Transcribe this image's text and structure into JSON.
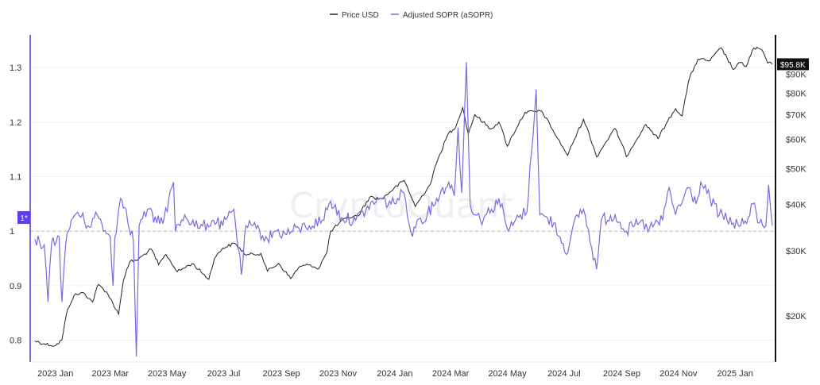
{
  "chart_data": {
    "type": "line",
    "watermark": "CryptoQuant",
    "legend": [
      {
        "name": "Price USD",
        "color": "#222222"
      },
      {
        "name": "Adjusted SOPR (aSOPR)",
        "color": "#7b68dd"
      }
    ],
    "x_ticks": [
      "2023 Jan",
      "2023 Mar",
      "2023 May",
      "2023 Jul",
      "2023 Sep",
      "2023 Nov",
      "2024 Jan",
      "2024 Mar",
      "2024 May",
      "2024 Jul",
      "2024 Sep",
      "2024 Nov",
      "2025 Jan"
    ],
    "x_tick_dates": [
      "2023-01-01",
      "2023-03-01",
      "2023-05-01",
      "2023-07-01",
      "2023-09-01",
      "2023-11-01",
      "2024-01-01",
      "2024-03-01",
      "2024-05-01",
      "2024-07-01",
      "2024-09-01",
      "2024-11-01",
      "2025-01-01"
    ],
    "x_range": [
      "2022-12-10",
      "2025-02-10"
    ],
    "left_axis": {
      "ticks": [
        0.8,
        0.9,
        1,
        1.1,
        1.2,
        1.3
      ],
      "tick_labels": [
        "0.8",
        "0.9",
        "1",
        "1.1",
        "1.2",
        "1.3"
      ],
      "range": [
        0.76,
        1.36
      ],
      "baseline": 1
    },
    "right_axis": {
      "scale": "log",
      "ticks": [
        20000,
        30000,
        40000,
        50000,
        60000,
        70000,
        80000,
        90000
      ],
      "tick_labels": [
        "$20K",
        "$30K",
        "$40K",
        "$50K",
        "$60K",
        "$70K",
        "$80K",
        "$90K"
      ],
      "range": [
        15000,
        115000
      ]
    },
    "left_marker": {
      "label": "1*",
      "value": 1.025
    },
    "right_marker": {
      "label": "$95.8K",
      "value": 95800
    },
    "series": [
      {
        "name": "Price USD",
        "axis": "right",
        "color": "#222222",
        "points": [
          [
            "2022-12-10",
            17100
          ],
          [
            "2022-12-20",
            16800
          ],
          [
            "2023-01-01",
            16600
          ],
          [
            "2023-01-08",
            17200
          ],
          [
            "2023-01-14",
            20800
          ],
          [
            "2023-01-21",
            22700
          ],
          [
            "2023-01-31",
            23100
          ],
          [
            "2023-02-10",
            21800
          ],
          [
            "2023-02-16",
            24300
          ],
          [
            "2023-02-25",
            23200
          ],
          [
            "2023-03-10",
            20200
          ],
          [
            "2023-03-15",
            24900
          ],
          [
            "2023-03-22",
            28000
          ],
          [
            "2023-03-31",
            28400
          ],
          [
            "2023-04-14",
            30300
          ],
          [
            "2023-04-22",
            27500
          ],
          [
            "2023-04-30",
            29300
          ],
          [
            "2023-05-12",
            26300
          ],
          [
            "2023-05-28",
            27700
          ],
          [
            "2023-06-15",
            25100
          ],
          [
            "2023-06-21",
            28600
          ],
          [
            "2023-06-30",
            30500
          ],
          [
            "2023-07-13",
            31400
          ],
          [
            "2023-07-25",
            29200
          ],
          [
            "2023-08-10",
            29500
          ],
          [
            "2023-08-17",
            26400
          ],
          [
            "2023-08-29",
            27700
          ],
          [
            "2023-09-11",
            25200
          ],
          [
            "2023-09-20",
            27100
          ],
          [
            "2023-10-02",
            27500
          ],
          [
            "2023-10-11",
            26800
          ],
          [
            "2023-10-20",
            29700
          ],
          [
            "2023-10-24",
            33900
          ],
          [
            "2023-11-09",
            36700
          ],
          [
            "2023-11-23",
            37300
          ],
          [
            "2023-12-05",
            41900
          ],
          [
            "2023-12-18",
            41400
          ],
          [
            "2024-01-11",
            46500
          ],
          [
            "2024-01-23",
            39500
          ],
          [
            "2024-02-08",
            45300
          ],
          [
            "2024-02-15",
            51800
          ],
          [
            "2024-02-28",
            62500
          ],
          [
            "2024-03-05",
            63800
          ],
          [
            "2024-03-14",
            73100
          ],
          [
            "2024-03-20",
            62000
          ],
          [
            "2024-03-27",
            70000
          ],
          [
            "2024-04-13",
            64000
          ],
          [
            "2024-04-22",
            66800
          ],
          [
            "2024-05-01",
            57500
          ],
          [
            "2024-05-20",
            71000
          ],
          [
            "2024-06-07",
            71500
          ],
          [
            "2024-06-24",
            60300
          ],
          [
            "2024-07-05",
            54300
          ],
          [
            "2024-07-22",
            68000
          ],
          [
            "2024-08-05",
            53800
          ],
          [
            "2024-08-25",
            64200
          ],
          [
            "2024-09-06",
            53900
          ],
          [
            "2024-09-27",
            65800
          ],
          [
            "2024-10-10",
            60300
          ],
          [
            "2024-10-29",
            72700
          ],
          [
            "2024-11-05",
            69500
          ],
          [
            "2024-11-13",
            88000
          ],
          [
            "2024-11-22",
            98900
          ],
          [
            "2024-12-05",
            98000
          ],
          [
            "2024-12-17",
            106100
          ],
          [
            "2024-12-30",
            92700
          ],
          [
            "2025-01-07",
            96900
          ],
          [
            "2025-01-13",
            94500
          ],
          [
            "2025-01-21",
            106000
          ],
          [
            "2025-01-30",
            104700
          ],
          [
            "2025-02-05",
            96500
          ],
          [
            "2025-02-10",
            95800
          ]
        ]
      },
      {
        "name": "Adjusted SOPR (aSOPR)",
        "axis": "left",
        "color": "#7b68dd",
        "points": [
          [
            "2022-12-10",
            0.985
          ],
          [
            "2022-12-20",
            0.975
          ],
          [
            "2022-12-24",
            0.87
          ],
          [
            "2022-12-28",
            0.98
          ],
          [
            "2023-01-05",
            0.99
          ],
          [
            "2023-01-08",
            0.87
          ],
          [
            "2023-01-12",
            0.975
          ],
          [
            "2023-01-18",
            1.02
          ],
          [
            "2023-01-25",
            1.035
          ],
          [
            "2023-02-05",
            1.01
          ],
          [
            "2023-02-15",
            1.03
          ],
          [
            "2023-02-25",
            0.995
          ],
          [
            "2023-03-01",
            0.99
          ],
          [
            "2023-03-04",
            0.9
          ],
          [
            "2023-03-06",
            0.99
          ],
          [
            "2023-03-12",
            1.06
          ],
          [
            "2023-03-18",
            1.04
          ],
          [
            "2023-03-26",
            0.98
          ],
          [
            "2023-03-29",
            0.77
          ],
          [
            "2023-04-01",
            1.01
          ],
          [
            "2023-04-10",
            1.04
          ],
          [
            "2023-04-20",
            1.015
          ],
          [
            "2023-04-28",
            1.025
          ],
          [
            "2023-05-08",
            1.09
          ],
          [
            "2023-05-10",
            1.0
          ],
          [
            "2023-05-20",
            1.03
          ],
          [
            "2023-06-05",
            1.005
          ],
          [
            "2023-06-20",
            1.02
          ],
          [
            "2023-06-30",
            1.01
          ],
          [
            "2023-07-12",
            1.04
          ],
          [
            "2023-07-20",
            0.92
          ],
          [
            "2023-07-25",
            1.01
          ],
          [
            "2023-08-05",
            1.005
          ],
          [
            "2023-08-17",
            0.985
          ],
          [
            "2023-08-25",
            1.0
          ],
          [
            "2023-09-05",
            0.995
          ],
          [
            "2023-09-20",
            1.005
          ],
          [
            "2023-10-01",
            1.01
          ],
          [
            "2023-10-15",
            1.02
          ],
          [
            "2023-10-24",
            1.055
          ],
          [
            "2023-11-05",
            1.025
          ],
          [
            "2023-11-20",
            1.02
          ],
          [
            "2023-12-01",
            1.04
          ],
          [
            "2023-12-15",
            1.06
          ],
          [
            "2023-12-28",
            1.05
          ],
          [
            "2024-01-11",
            1.07
          ],
          [
            "2024-01-20",
            0.99
          ],
          [
            "2024-01-25",
            1.02
          ],
          [
            "2024-02-05",
            1.03
          ],
          [
            "2024-02-15",
            1.06
          ],
          [
            "2024-02-28",
            1.09
          ],
          [
            "2024-03-05",
            1.065
          ],
          [
            "2024-03-09",
            1.19
          ],
          [
            "2024-03-13",
            1.07
          ],
          [
            "2024-03-18",
            1.31
          ],
          [
            "2024-03-22",
            1.05
          ],
          [
            "2024-04-02",
            1.02
          ],
          [
            "2024-04-14",
            1.04
          ],
          [
            "2024-04-22",
            1.06
          ],
          [
            "2024-05-02",
            1.0
          ],
          [
            "2024-05-15",
            1.03
          ],
          [
            "2024-05-22",
            1.035
          ],
          [
            "2024-06-01",
            1.26
          ],
          [
            "2024-06-05",
            1.03
          ],
          [
            "2024-06-20",
            1.015
          ],
          [
            "2024-07-05",
            0.96
          ],
          [
            "2024-07-15",
            1.03
          ],
          [
            "2024-07-22",
            1.04
          ],
          [
            "2024-08-05",
            0.93
          ],
          [
            "2024-08-10",
            1.02
          ],
          [
            "2024-08-25",
            1.03
          ],
          [
            "2024-09-06",
            1.0
          ],
          [
            "2024-09-20",
            1.015
          ],
          [
            "2024-10-01",
            1.005
          ],
          [
            "2024-10-15",
            1.02
          ],
          [
            "2024-10-22",
            1.08
          ],
          [
            "2024-10-29",
            1.03
          ],
          [
            "2024-11-12",
            1.08
          ],
          [
            "2024-11-20",
            1.05
          ],
          [
            "2024-11-25",
            1.09
          ],
          [
            "2024-12-05",
            1.06
          ],
          [
            "2024-12-15",
            1.03
          ],
          [
            "2024-12-30",
            1.015
          ],
          [
            "2025-01-07",
            1.01
          ],
          [
            "2025-01-15",
            1.025
          ],
          [
            "2025-01-20",
            1.05
          ],
          [
            "2025-01-27",
            1.015
          ],
          [
            "2025-02-03",
            1.01
          ],
          [
            "2025-02-06",
            1.085
          ],
          [
            "2025-02-10",
            1.01
          ]
        ]
      }
    ]
  }
}
